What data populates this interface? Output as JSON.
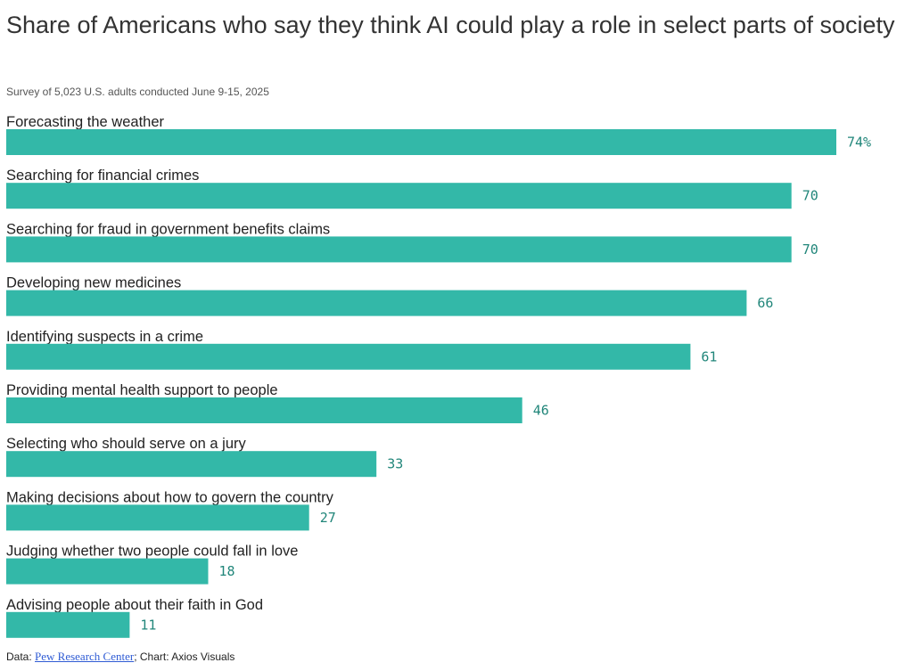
{
  "header": {
    "title": "Share of Americans who say they think AI could play a role in select parts of society",
    "subtitle": "Survey of 5,023 U.S. adults conducted June 9-15, 2025"
  },
  "footer": {
    "data_prefix": "Data: ",
    "source_link": "Pew Research Center",
    "chart_credit": "; Chart: Axios Visuals"
  },
  "colors": {
    "bar": "#33b8a8",
    "value_label": "#21867a"
  },
  "chart_data": {
    "type": "bar",
    "orientation": "horizontal",
    "title": "Share of Americans who say they think AI could play a role in select parts of society",
    "subtitle": "Survey of 5,023 U.S. adults conducted June 9-15, 2025",
    "categories": [
      "Forecasting the weather",
      "Searching for financial crimes",
      "Searching for fraud in government benefits claims",
      "Developing new medicines",
      "Identifying suspects in a crime",
      "Providing mental health support to people",
      "Selecting who should serve on a jury",
      "Making decisions about how to govern the country",
      "Judging whether two people could fall in love",
      "Advising people about their faith in God"
    ],
    "values": [
      74,
      70,
      70,
      66,
      61,
      46,
      33,
      27,
      18,
      11
    ],
    "value_labels": [
      "74%",
      "70",
      "70",
      "66",
      "61",
      "46",
      "33",
      "27",
      "18",
      "11"
    ],
    "unit": "%",
    "xlim": [
      0,
      74
    ],
    "grid": false,
    "legend": "none"
  }
}
